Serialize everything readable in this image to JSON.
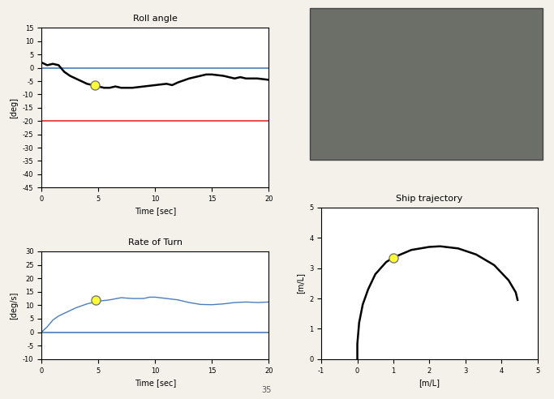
{
  "chart_data": [
    {
      "type": "line",
      "title": "Roll angle",
      "x_label": "Time [sec]",
      "y_label": "[deg]",
      "xlim": [
        0,
        20
      ],
      "xticks": [
        0,
        5,
        10,
        15,
        20
      ],
      "ylim": [
        -45,
        15
      ],
      "yticks": [
        -45,
        -40,
        -35,
        -30,
        -25,
        -20,
        -15,
        -10,
        -5,
        0,
        5,
        10,
        15
      ],
      "grid": false,
      "series": [
        {
          "name": "Roll angle",
          "color": "#000000",
          "line_style": "solid",
          "x": [
            0,
            0.5,
            1,
            1.5,
            2,
            2.5,
            3,
            3.5,
            4,
            4.5,
            5,
            5.5,
            6,
            6.5,
            7,
            8,
            9,
            10,
            11,
            11.5,
            12,
            13,
            14,
            14.5,
            15,
            16,
            17,
            17.5,
            18,
            19,
            20
          ],
          "values": [
            2,
            1,
            1.5,
            1,
            -1.5,
            -3,
            -4,
            -5,
            -6,
            -6.5,
            -7,
            -7.5,
            -7.5,
            -7,
            -7.5,
            -7.5,
            -7,
            -6.5,
            -6,
            -6.5,
            -5.5,
            -4,
            -3,
            -2.5,
            -2.5,
            -3,
            -4,
            -3.5,
            -4,
            -4,
            -4.5
          ]
        }
      ],
      "reference_lines": [
        {
          "value": 0,
          "color": "#4a7ebb"
        },
        {
          "value": -20,
          "color": "#e0302a"
        }
      ],
      "highlight": {
        "x": 4.7,
        "y": -6.5,
        "color": "#ffff33"
      }
    },
    {
      "type": "line",
      "title": "Rate of Turn",
      "x_label": "Time [sec]",
      "y_label": "[deg/s]",
      "xlim": [
        0,
        20
      ],
      "xticks": [
        0,
        5,
        10,
        15,
        20
      ],
      "ylim": [
        -10,
        30
      ],
      "yticks": [
        -10,
        -5,
        0,
        5,
        10,
        15,
        20,
        25,
        30
      ],
      "grid": false,
      "series": [
        {
          "name": "Rate of Turn",
          "color": "#4a7ebb",
          "line_style": "solid",
          "x": [
            0,
            0.5,
            1,
            1.5,
            2,
            3,
            4,
            5,
            6,
            7,
            8,
            9,
            9.5,
            10,
            11,
            12,
            13,
            14,
            15,
            16,
            17,
            18,
            19,
            20
          ],
          "values": [
            0,
            2,
            4.5,
            6,
            7,
            9,
            10.5,
            11.5,
            12,
            12.8,
            12.5,
            12.5,
            13,
            13,
            12.5,
            12,
            11,
            10.3,
            10.2,
            10.5,
            11,
            11.2,
            11,
            11.2
          ]
        }
      ],
      "reference_lines": [
        {
          "value": 0,
          "color": "#4a7ebb"
        }
      ],
      "highlight": {
        "x": 4.8,
        "y": 11.8,
        "color": "#ffff33"
      }
    },
    {
      "type": "line",
      "title": "Ship trajectory",
      "x_label": "[m/L]",
      "y_label": "[m/L]",
      "xlim": [
        -1,
        5
      ],
      "xticks": [
        -1,
        0,
        1,
        2,
        3,
        4,
        5
      ],
      "ylim": [
        0,
        5
      ],
      "yticks": [
        0,
        1,
        2,
        3,
        4,
        5
      ],
      "grid": false,
      "series": [
        {
          "name": "Ship trajectory",
          "color": "#000000",
          "line_style": "solid",
          "x": [
            0,
            0,
            0.05,
            0.15,
            0.3,
            0.5,
            0.8,
            1,
            1.5,
            2,
            2.3,
            2.8,
            3.3,
            3.8,
            4.2,
            4.4,
            4.45
          ],
          "values": [
            0,
            0.5,
            1.2,
            1.8,
            2.3,
            2.8,
            3.2,
            3.35,
            3.6,
            3.7,
            3.72,
            3.65,
            3.45,
            3.1,
            2.6,
            2.2,
            1.95
          ]
        }
      ],
      "reference_lines": [],
      "highlight": {
        "x": 1,
        "y": 3.33,
        "color": "#ffff33"
      }
    }
  ],
  "page_number": "35"
}
